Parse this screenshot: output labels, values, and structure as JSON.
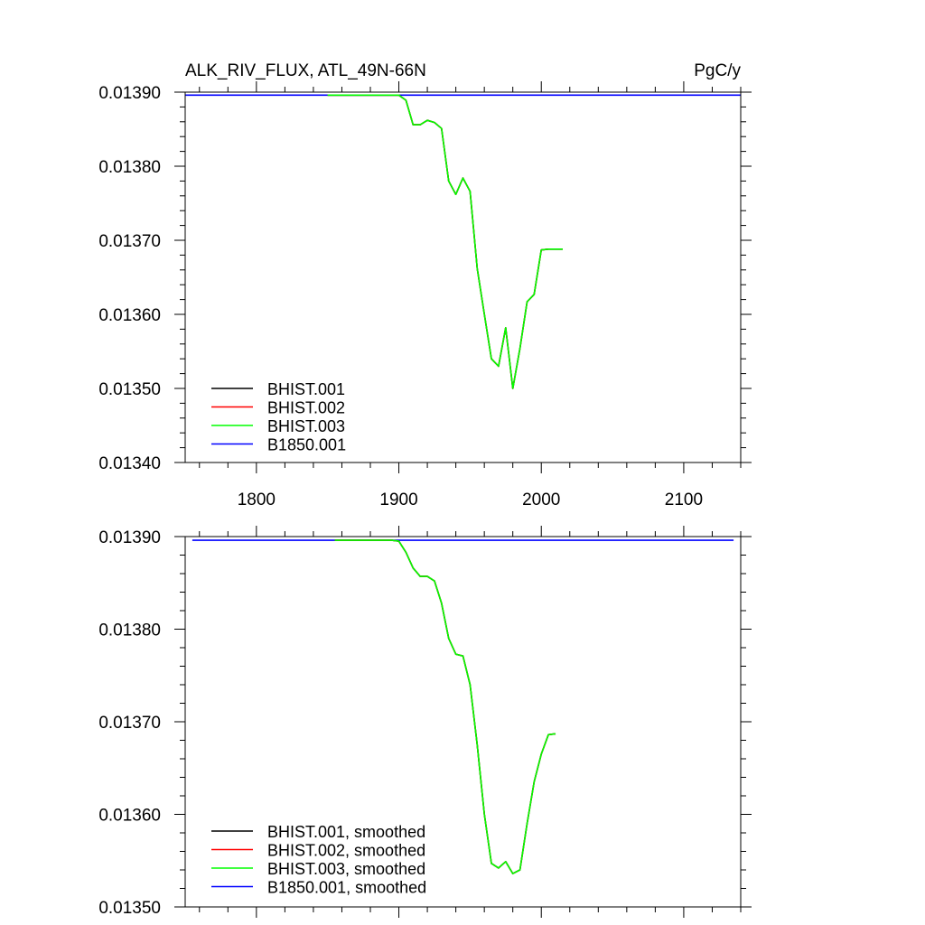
{
  "chart_data": [
    {
      "type": "line",
      "title_left": "ALK_RIV_FLUX, ATL_49N-66N",
      "title_right": "PgC/y",
      "xlim": [
        1750,
        2140
      ],
      "ylim": [
        0.0134,
        0.0139
      ],
      "x_ticks": [
        1800,
        1900,
        2000,
        2100
      ],
      "x_tick_labels": [
        "1800",
        "1900",
        "2000",
        "2100"
      ],
      "y_ticks": [
        0.0134,
        0.0135,
        0.0136,
        0.0137,
        0.0138,
        0.0139
      ],
      "y_tick_labels": [
        "0.01340",
        "0.01350",
        "0.01360",
        "0.01370",
        "0.01380",
        "0.01390"
      ],
      "legend_position": "bottom-left",
      "series": [
        {
          "name": "BHIST.001",
          "color": "#000000",
          "x": [
            1850,
            1860,
            1870,
            1880,
            1890,
            1900,
            1905,
            1910,
            1915,
            1920,
            1925,
            1930,
            1935,
            1940,
            1945,
            1950,
            1955,
            1960,
            1965,
            1970,
            1975,
            1980,
            1985,
            1990,
            1995,
            2000,
            2005,
            2010,
            2015
          ],
          "y": [
            0.013896,
            0.013896,
            0.013896,
            0.013896,
            0.013896,
            0.013896,
            0.013889,
            0.013856,
            0.013856,
            0.013862,
            0.013859,
            0.013851,
            0.01378,
            0.013762,
            0.013784,
            0.013766,
            0.013662,
            0.0136,
            0.01354,
            0.01353,
            0.013582,
            0.0135,
            0.013554,
            0.013617,
            0.013627,
            0.013687,
            0.013688,
            0.013688,
            0.013688
          ]
        },
        {
          "name": "BHIST.002",
          "color": "#ff0000",
          "x": [
            1850,
            1860,
            1870,
            1880,
            1890,
            1900,
            1905,
            1910,
            1915,
            1920,
            1925,
            1930,
            1935,
            1940,
            1945,
            1950,
            1955,
            1960,
            1965,
            1970,
            1975,
            1980,
            1985,
            1990,
            1995,
            2000,
            2005,
            2010,
            2015
          ],
          "y": [
            0.013896,
            0.013896,
            0.013896,
            0.013896,
            0.013896,
            0.013896,
            0.013889,
            0.013856,
            0.013856,
            0.013862,
            0.013859,
            0.013851,
            0.01378,
            0.013762,
            0.013784,
            0.013766,
            0.013662,
            0.0136,
            0.01354,
            0.01353,
            0.013582,
            0.0135,
            0.013554,
            0.013617,
            0.013627,
            0.013687,
            0.013688,
            0.013688,
            0.013688
          ]
        },
        {
          "name": "BHIST.003",
          "color": "#00ff00",
          "x": [
            1850,
            1860,
            1870,
            1880,
            1890,
            1900,
            1905,
            1910,
            1915,
            1920,
            1925,
            1930,
            1935,
            1940,
            1945,
            1950,
            1955,
            1960,
            1965,
            1970,
            1975,
            1980,
            1985,
            1990,
            1995,
            2000,
            2005,
            2010,
            2015
          ],
          "y": [
            0.013896,
            0.013896,
            0.013896,
            0.013896,
            0.013896,
            0.013896,
            0.013889,
            0.013856,
            0.013856,
            0.013862,
            0.013859,
            0.013851,
            0.01378,
            0.013762,
            0.013784,
            0.013766,
            0.013662,
            0.0136,
            0.01354,
            0.01353,
            0.013582,
            0.0135,
            0.013554,
            0.013617,
            0.013627,
            0.013687,
            0.013688,
            0.013688,
            0.013688
          ]
        },
        {
          "name": "B1850.001",
          "color": "#0000ff",
          "x": [
            1750,
            2140
          ],
          "y": [
            0.013896,
            0.013896
          ]
        }
      ]
    },
    {
      "type": "line",
      "xlim": [
        1750,
        2140
      ],
      "ylim": [
        0.0135,
        0.0139
      ],
      "x_ticks": [
        1800,
        1900,
        2000,
        2100
      ],
      "y_ticks": [
        0.0135,
        0.0136,
        0.0137,
        0.0138,
        0.0139
      ],
      "y_tick_labels": [
        "0.01350",
        "0.01360",
        "0.01370",
        "0.01380",
        "0.01390"
      ],
      "legend_position": "bottom-left",
      "series": [
        {
          "name": "BHIST.001, smoothed",
          "color": "#000000",
          "x": [
            1855,
            1865,
            1875,
            1885,
            1895,
            1900,
            1905,
            1910,
            1915,
            1920,
            1925,
            1930,
            1935,
            1940,
            1945,
            1950,
            1955,
            1960,
            1965,
            1970,
            1975,
            1980,
            1985,
            1990,
            1995,
            2000,
            2005,
            2010
          ],
          "y": [
            0.013896,
            0.013896,
            0.013896,
            0.013896,
            0.013896,
            0.013895,
            0.013883,
            0.013866,
            0.013857,
            0.013857,
            0.013852,
            0.013828,
            0.01379,
            0.013773,
            0.013771,
            0.01374,
            0.013675,
            0.0136,
            0.013547,
            0.013542,
            0.013549,
            0.013536,
            0.01354,
            0.01359,
            0.013635,
            0.013665,
            0.013686,
            0.013687
          ]
        },
        {
          "name": "BHIST.002, smoothed",
          "color": "#ff0000",
          "x": [
            1855,
            1865,
            1875,
            1885,
            1895,
            1900,
            1905,
            1910,
            1915,
            1920,
            1925,
            1930,
            1935,
            1940,
            1945,
            1950,
            1955,
            1960,
            1965,
            1970,
            1975,
            1980,
            1985,
            1990,
            1995,
            2000,
            2005,
            2010
          ],
          "y": [
            0.013896,
            0.013896,
            0.013896,
            0.013896,
            0.013896,
            0.013895,
            0.013883,
            0.013866,
            0.013857,
            0.013857,
            0.013852,
            0.013828,
            0.01379,
            0.013773,
            0.013771,
            0.01374,
            0.013675,
            0.0136,
            0.013547,
            0.013542,
            0.013549,
            0.013536,
            0.01354,
            0.01359,
            0.013635,
            0.013665,
            0.013686,
            0.013687
          ]
        },
        {
          "name": "BHIST.003, smoothed",
          "color": "#00ff00",
          "x": [
            1855,
            1865,
            1875,
            1885,
            1895,
            1900,
            1905,
            1910,
            1915,
            1920,
            1925,
            1930,
            1935,
            1940,
            1945,
            1950,
            1955,
            1960,
            1965,
            1970,
            1975,
            1980,
            1985,
            1990,
            1995,
            2000,
            2005,
            2010
          ],
          "y": [
            0.013896,
            0.013896,
            0.013896,
            0.013896,
            0.013896,
            0.013895,
            0.013883,
            0.013866,
            0.013857,
            0.013857,
            0.013852,
            0.013828,
            0.01379,
            0.013773,
            0.013771,
            0.01374,
            0.013675,
            0.0136,
            0.013547,
            0.013542,
            0.013549,
            0.013536,
            0.01354,
            0.01359,
            0.013635,
            0.013665,
            0.013686,
            0.013687
          ]
        },
        {
          "name": "B1850.001, smoothed",
          "color": "#0000ff",
          "x": [
            1755,
            2135
          ],
          "y": [
            0.013896,
            0.013896
          ]
        }
      ]
    }
  ]
}
